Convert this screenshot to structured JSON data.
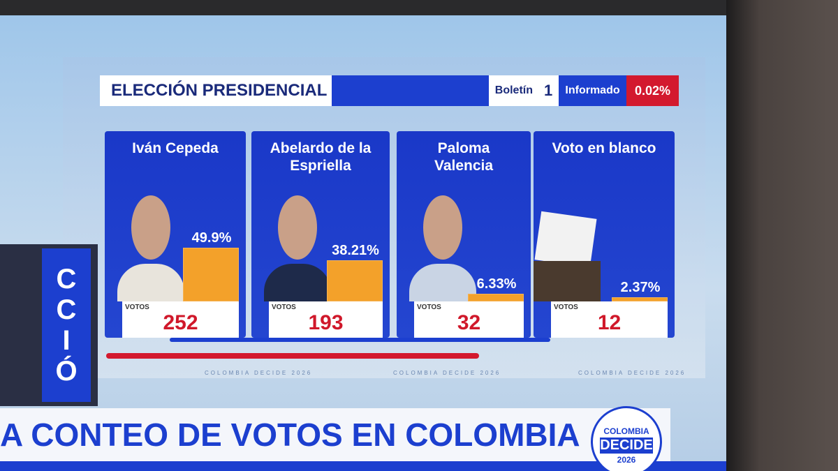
{
  "header": {
    "title": "ELECCIÓN PRESIDENCIAL",
    "bulletin_label": "Boletín",
    "bulletin": 1,
    "reported_label": "Informado",
    "reported": "0.02%"
  },
  "votes_label": "VOTOS",
  "candidates": [
    {
      "name": "Iván Cepeda",
      "percent": 49.9,
      "percent_label": "49.9%",
      "votes": 252
    },
    {
      "name": "Abelardo de la Espriella",
      "percent": 38.21,
      "percent_label": "38.21%",
      "votes": 193
    },
    {
      "name": "Paloma Valencia",
      "percent": 6.33,
      "percent_label": "6.33%",
      "votes": 32
    },
    {
      "name": "Voto en blanco",
      "percent": 2.37,
      "percent_label": "2.37%",
      "votes": 12
    }
  ],
  "watermark": "COLOMBIA DECIDE 2026",
  "side_text": "CCIÓ",
  "ticker": "A CONTEO DE VOTOS EN COLOMBIA",
  "logo": {
    "line1": "COLOMBIA",
    "line2": "DECIDE",
    "year": "2026"
  }
}
